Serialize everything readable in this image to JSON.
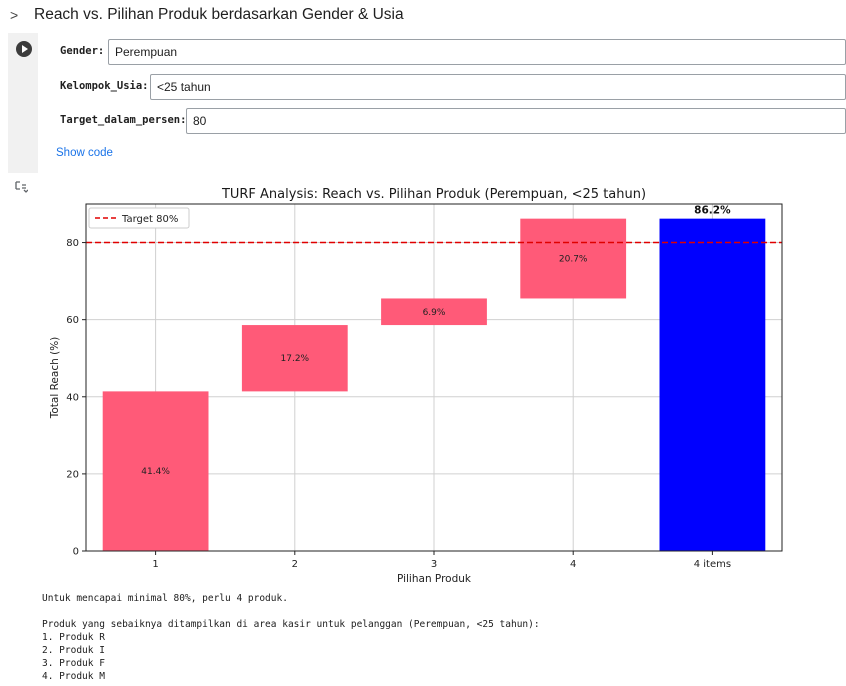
{
  "section": {
    "title": "Reach vs. Pilihan Produk berdasarkan Gender & Usia"
  },
  "form": {
    "gender": {
      "label": "Gender:",
      "value": "Perempuan"
    },
    "kelompok_usia": {
      "label": "Kelompok_Usia:",
      "value": "<25 tahun"
    },
    "target": {
      "label": "Target_dalam_persen:",
      "value": "80"
    }
  },
  "show_code_label": "Show code",
  "chart_data": {
    "type": "bar",
    "title": "TURF Analysis: Reach vs. Pilihan Produk (Perempuan, <25 tahun)",
    "xlabel": "Pilihan Produk",
    "ylabel": "Total Reach (%)",
    "ylim": [
      0,
      90
    ],
    "yticks": [
      0,
      20,
      40,
      60,
      80
    ],
    "grid": true,
    "legend": "top-left",
    "categories": [
      "1",
      "2",
      "3",
      "4",
      "4 items"
    ],
    "increments": [
      41.4,
      17.2,
      6.9,
      20.7
    ],
    "increment_labels": [
      "41.4%",
      "17.2%",
      "6.9%",
      "20.7%"
    ],
    "total": 86.2,
    "total_label": "86.2%",
    "target_value": 80,
    "target_legend": "Target 80%",
    "colors": {
      "increment": "#ff5a78",
      "total": "#0000ff",
      "target": "#e00000"
    }
  },
  "output_lines": [
    "Untuk mencapai minimal 80%, perlu 4 produk.",
    "",
    "Produk yang sebaiknya ditampilkan di area kasir untuk pelanggan (Perempuan, <25 tahun):",
    "1. Produk R",
    "2. Produk I",
    "3. Produk F",
    "4. Produk M"
  ]
}
